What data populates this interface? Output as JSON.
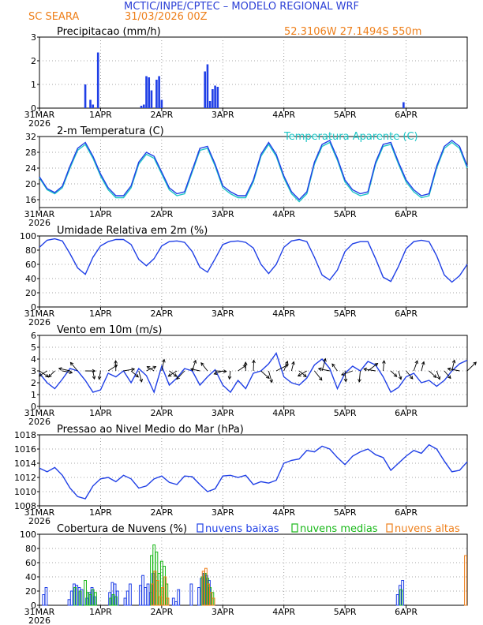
{
  "header": {
    "title": "MCTIC/INPE/CPTEC – MODELO REGIONAL WRF",
    "location": "SC SEARA",
    "run": "31/03/2026 00Z",
    "coords": "52.3106W 27.1494S 550m"
  },
  "colors": {
    "title": "#2b3fd6",
    "orange": "#ee7f1a",
    "blue": "#1f3fe6",
    "cyan": "#1ec6c6",
    "green": "#18b818",
    "black": "#000000"
  },
  "x_axis": {
    "start": "31MAR 2026",
    "end_hour": 168,
    "ticks": [
      {
        "hour": 0,
        "label": "31MAR",
        "sub": "2026"
      },
      {
        "hour": 24,
        "label": "1APR"
      },
      {
        "hour": 48,
        "label": "2APR"
      },
      {
        "hour": 72,
        "label": "3APR"
      },
      {
        "hour": 96,
        "label": "4APR"
      },
      {
        "hour": 120,
        "label": "5APR"
      },
      {
        "hour": 144,
        "label": "6APR"
      }
    ]
  },
  "chart_data": [
    {
      "type": "bar",
      "title": "Precipitacao (mm/h)",
      "ylim": [
        0,
        3
      ],
      "yticks": [
        0,
        1,
        2,
        3
      ],
      "series": [
        {
          "x_hours": [
            18,
            20,
            21,
            23,
            40,
            41,
            42,
            43,
            44,
            46,
            47,
            48,
            65,
            66,
            67,
            68,
            69,
            70,
            143
          ],
          "values": [
            1.0,
            0.35,
            0.15,
            2.35,
            0.1,
            0.15,
            1.35,
            1.3,
            0.75,
            1.2,
            1.35,
            0.35,
            1.55,
            1.85,
            0.3,
            0.8,
            0.95,
            0.9,
            0.25
          ]
        }
      ]
    },
    {
      "type": "line",
      "title": "2-m Temperatura (C)",
      "legend": "Temperatura Aparente (C)",
      "ylim": [
        14,
        32
      ],
      "yticks": [
        16,
        20,
        24,
        28,
        32
      ],
      "x_hours": [
        0,
        3,
        6,
        9,
        12,
        15,
        18,
        21,
        24,
        27,
        30,
        33,
        36,
        39,
        42,
        45,
        48,
        51,
        54,
        57,
        60,
        63,
        66,
        69,
        72,
        75,
        78,
        81,
        84,
        87,
        90,
        93,
        96,
        99,
        102,
        105,
        108,
        111,
        114,
        117,
        120,
        123,
        126,
        129,
        132,
        135,
        138,
        141,
        144,
        147,
        150,
        153,
        156,
        159,
        162,
        165,
        168
      ],
      "series": [
        {
          "name": "2-m Temperatura (C)",
          "values": [
            21.5,
            18.5,
            17.5,
            19,
            24,
            28.5,
            30,
            26.5,
            22,
            18.5,
            16.5,
            16.5,
            19,
            25,
            27.5,
            26.5,
            22.5,
            18.5,
            17,
            17.5,
            23,
            28.5,
            29,
            24.5,
            19,
            17.5,
            16.5,
            16.5,
            20.5,
            27,
            30,
            27,
            21.5,
            17.5,
            15.5,
            17.5,
            25,
            29.5,
            30.5,
            26,
            20.5,
            18,
            17,
            17.5,
            25,
            29.5,
            30,
            25,
            20.5,
            18,
            16.5,
            17,
            24,
            29,
            30.5,
            29,
            24
          ]
        },
        {
          "name": "Temperatura Aparente (C)",
          "values": [
            21.8,
            18.8,
            17.8,
            19.4,
            24.5,
            29,
            30.5,
            27,
            22.5,
            19,
            17,
            17,
            19.5,
            25.5,
            28,
            27,
            23,
            19,
            17.5,
            18,
            23.5,
            29,
            29.5,
            25,
            19.5,
            18,
            17,
            17,
            21,
            27.5,
            30.5,
            27.5,
            22,
            18,
            16,
            18,
            25.5,
            30,
            31,
            26.5,
            21,
            18.5,
            17.5,
            18,
            25.5,
            30,
            30.5,
            25.5,
            21,
            18.5,
            17,
            17.5,
            24.5,
            29.5,
            31,
            29.5,
            24.5
          ]
        }
      ]
    },
    {
      "type": "line",
      "title": "Umidade Relativa em 2m (%)",
      "ylim": [
        0,
        100
      ],
      "yticks": [
        0,
        20,
        40,
        60,
        80,
        100
      ],
      "x_hours": [
        0,
        3,
        6,
        9,
        12,
        15,
        18,
        21,
        24,
        27,
        30,
        33,
        36,
        39,
        42,
        45,
        48,
        51,
        54,
        57,
        60,
        63,
        66,
        69,
        72,
        75,
        78,
        81,
        84,
        87,
        90,
        93,
        96,
        99,
        102,
        105,
        108,
        111,
        114,
        117,
        120,
        123,
        126,
        129,
        132,
        135,
        138,
        141,
        144,
        147,
        150,
        153,
        156,
        159,
        162,
        165,
        168
      ],
      "series": [
        {
          "name": "Umidade Relativa em 2m (%)",
          "values": [
            84,
            94,
            96,
            93,
            75,
            55,
            46,
            70,
            86,
            92,
            95,
            95,
            88,
            67,
            58,
            68,
            86,
            92,
            93,
            91,
            78,
            56,
            49,
            68,
            88,
            92,
            93,
            91,
            83,
            60,
            47,
            60,
            84,
            93,
            95,
            92,
            70,
            45,
            38,
            52,
            78,
            89,
            92,
            92,
            68,
            42,
            36,
            57,
            82,
            92,
            94,
            92,
            72,
            45,
            35,
            44,
            60
          ]
        }
      ]
    },
    {
      "type": "line",
      "title": "Vento em 10m (m/s)",
      "ylim": [
        0,
        6
      ],
      "yticks": [
        0,
        1,
        2,
        3,
        4,
        5,
        6
      ],
      "x_hours": [
        0,
        3,
        6,
        9,
        12,
        15,
        18,
        21,
        24,
        27,
        30,
        33,
        36,
        39,
        42,
        45,
        48,
        51,
        54,
        57,
        60,
        63,
        66,
        69,
        72,
        75,
        78,
        81,
        84,
        87,
        90,
        93,
        96,
        99,
        102,
        105,
        108,
        111,
        114,
        117,
        120,
        123,
        126,
        129,
        132,
        135,
        138,
        141,
        144,
        147,
        150,
        153,
        156,
        159,
        162,
        165,
        168
      ],
      "series": [
        {
          "name": "Vento em 10m (m/s)",
          "values": [
            2.8,
            2.0,
            1.5,
            2.3,
            3.2,
            3.0,
            2.2,
            1.2,
            1.4,
            2.8,
            2.5,
            3.0,
            2.0,
            3.2,
            2.6,
            1.2,
            3.4,
            1.8,
            2.4,
            3.2,
            3.0,
            1.8,
            2.5,
            3.1,
            1.8,
            1.2,
            2.2,
            1.5,
            2.8,
            3.0,
            3.6,
            4.5,
            2.5,
            2.0,
            1.8,
            2.4,
            3.5,
            4.0,
            3.2,
            1.5,
            2.8,
            3.4,
            3.0,
            3.8,
            3.5,
            2.5,
            1.2,
            1.6,
            2.5,
            2.8,
            2.0,
            2.2,
            1.7,
            2.2,
            3.0,
            3.6,
            3.9
          ]
        }
      ],
      "wind_vectors": true
    },
    {
      "type": "line",
      "title": "Pressao ao Nivel Medio do Mar (hPa)",
      "ylim": [
        1008,
        1018
      ],
      "yticks": [
        1008,
        1010,
        1012,
        1014,
        1016,
        1018
      ],
      "x_hours": [
        0,
        3,
        6,
        9,
        12,
        15,
        18,
        21,
        24,
        27,
        30,
        33,
        36,
        39,
        42,
        45,
        48,
        51,
        54,
        57,
        60,
        63,
        66,
        69,
        72,
        75,
        78,
        81,
        84,
        87,
        90,
        93,
        96,
        99,
        102,
        105,
        108,
        111,
        114,
        117,
        120,
        123,
        126,
        129,
        132,
        135,
        138,
        141,
        144,
        147,
        150,
        153,
        156,
        159,
        162,
        165,
        168
      ],
      "series": [
        {
          "name": "Pressao ao Nivel Medio do Mar (hPa)",
          "values": [
            1013.3,
            1012.8,
            1013.4,
            1012.3,
            1010.5,
            1009.3,
            1009.0,
            1010.8,
            1011.8,
            1012.0,
            1011.4,
            1012.3,
            1011.8,
            1010.5,
            1010.8,
            1011.8,
            1012.2,
            1011.3,
            1011.0,
            1012.2,
            1012.1,
            1011.0,
            1010.0,
            1010.4,
            1012.2,
            1012.3,
            1012.0,
            1012.3,
            1011.0,
            1011.4,
            1011.2,
            1011.6,
            1014.0,
            1014.4,
            1014.6,
            1015.8,
            1015.6,
            1016.4,
            1016.0,
            1014.8,
            1013.8,
            1015.0,
            1015.6,
            1016.0,
            1015.2,
            1014.8,
            1013.0,
            1014.0,
            1015.0,
            1015.8,
            1015.4,
            1016.6,
            1016.0,
            1014.3,
            1012.8,
            1013.0,
            1014.2
          ]
        }
      ]
    },
    {
      "type": "bar",
      "title": "Cobertura de Nuvens (%)",
      "ylim": [
        0,
        100
      ],
      "yticks": [
        0,
        20,
        40,
        60,
        80,
        100
      ],
      "legend": [
        "nuvens baixas",
        "nuvens medias",
        "nuvens altas"
      ],
      "series": [
        {
          "name": "nuvens baixas",
          "x_hours": [
            2,
            3,
            12,
            13,
            14,
            15,
            16,
            17,
            19,
            20,
            21,
            22,
            28,
            29,
            30,
            31,
            34,
            35,
            36,
            40,
            41,
            42,
            43,
            44,
            45,
            53,
            54,
            55,
            60,
            63,
            64,
            65,
            66,
            67,
            141,
            142,
            143
          ],
          "values": [
            15,
            25,
            8,
            20,
            30,
            28,
            25,
            22,
            10,
            18,
            25,
            12,
            18,
            32,
            30,
            20,
            10,
            20,
            30,
            28,
            42,
            25,
            30,
            18,
            45,
            10,
            5,
            22,
            30,
            25,
            38,
            45,
            42,
            35,
            15,
            28,
            35
          ]
        },
        {
          "name": "nuvens medias",
          "x_hours": [
            14,
            16,
            18,
            19,
            20,
            21,
            22,
            28,
            29,
            30,
            44,
            45,
            46,
            47,
            48,
            49,
            50,
            64,
            65,
            66,
            67,
            68,
            142
          ],
          "values": [
            25,
            20,
            35,
            18,
            15,
            22,
            18,
            10,
            15,
            12,
            70,
            85,
            75,
            45,
            62,
            55,
            30,
            40,
            45,
            38,
            25,
            18,
            22
          ]
        },
        {
          "name": "nuvens altas",
          "x_hours": [
            44,
            45,
            46,
            47,
            48,
            49,
            50,
            64,
            65,
            66,
            67,
            68,
            167
          ],
          "values": [
            30,
            48,
            35,
            12,
            25,
            40,
            10,
            48,
            52,
            30,
            18,
            10,
            70
          ]
        }
      ]
    }
  ]
}
